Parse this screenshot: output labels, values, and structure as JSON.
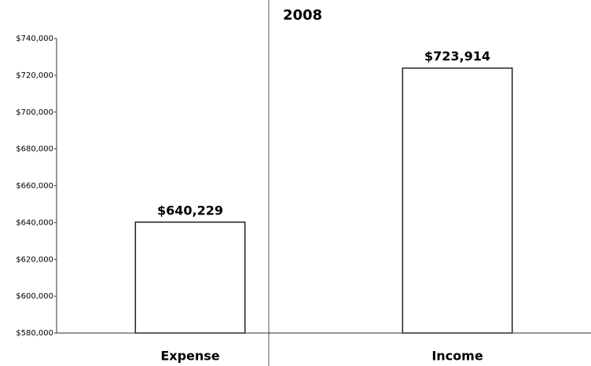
{
  "chart_data": {
    "type": "bar",
    "title": "2008",
    "categories": [
      "Expense",
      "Income"
    ],
    "values": [
      640229,
      723914
    ],
    "value_labels": [
      "$640,229",
      "$723,914"
    ],
    "color": "#ffffff",
    "ylim": [
      580000,
      740000
    ],
    "yticks": [
      {
        "value": 580000,
        "label": "$580,000"
      },
      {
        "value": 600000,
        "label": "$600,000"
      },
      {
        "value": 620000,
        "label": "$620,000"
      },
      {
        "value": 640000,
        "label": "$640,000"
      },
      {
        "value": 660000,
        "label": "$660,000"
      },
      {
        "value": 680000,
        "label": "$680,000"
      },
      {
        "value": 700000,
        "label": "$700,000"
      },
      {
        "value": 720000,
        "label": "$720,000"
      },
      {
        "value": 740000,
        "label": "$740,000"
      }
    ],
    "grid": false
  }
}
